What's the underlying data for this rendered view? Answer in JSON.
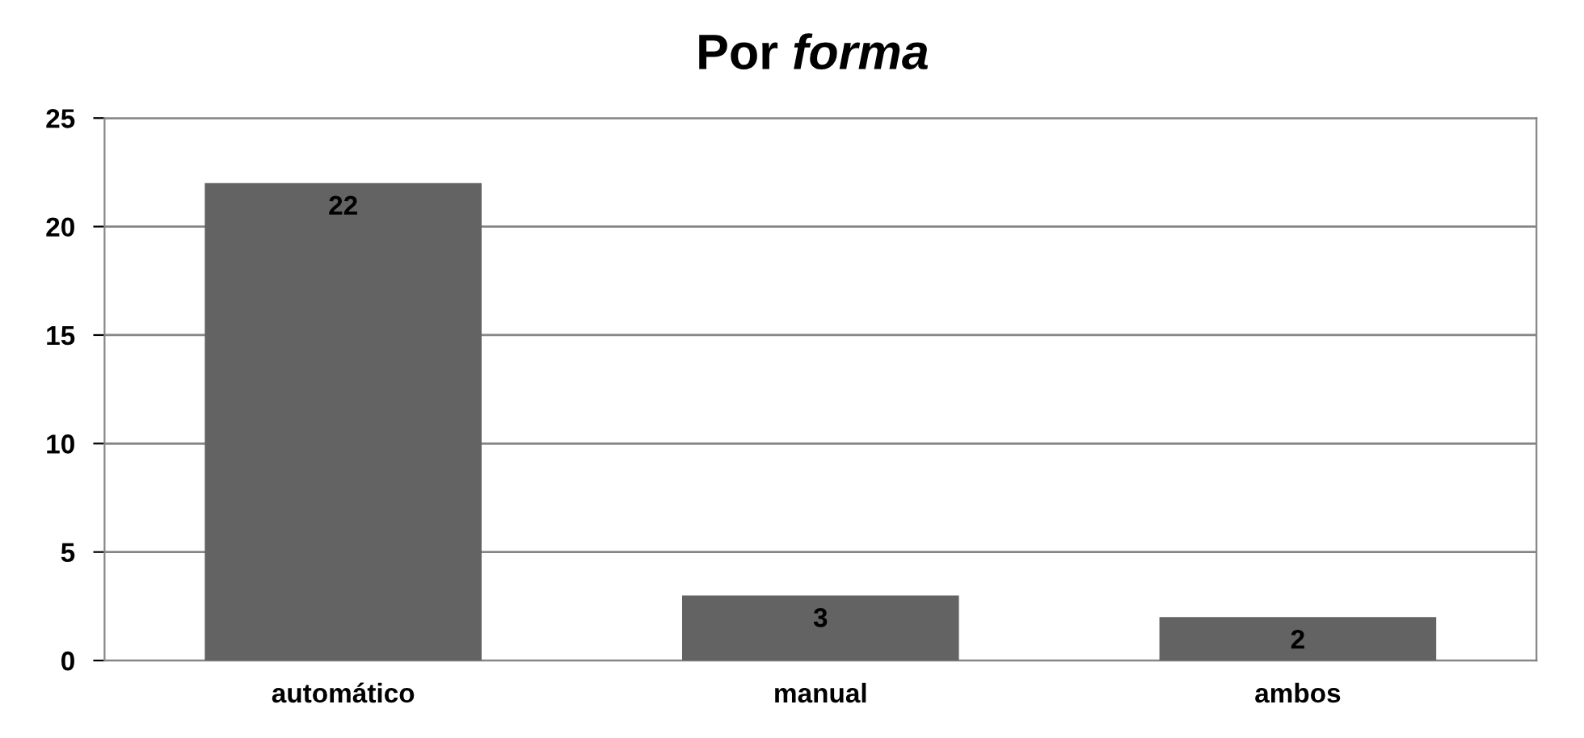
{
  "chart_data": {
    "type": "bar",
    "title": "Por forma",
    "categories": [
      "automático",
      "manual",
      "ambos"
    ],
    "values": [
      22,
      3,
      2
    ],
    "color": "#636363",
    "ylim": [
      0,
      25
    ],
    "yticks": [
      0,
      5,
      10,
      15,
      20,
      25
    ],
    "grid": "y",
    "data_labels": true
  }
}
